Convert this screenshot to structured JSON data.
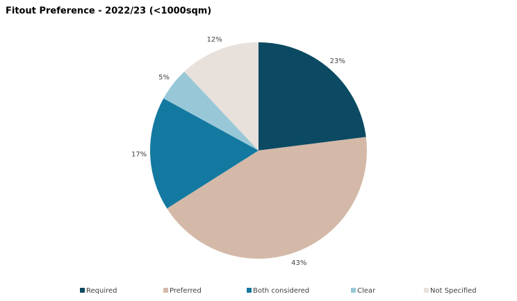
{
  "chart_data": {
    "type": "pie",
    "title": "Fitout Preference - 2022/23 (<1000sqm)",
    "categories": [
      "Required",
      "Preferred",
      "Both considered",
      "Clear",
      "Not Specified"
    ],
    "values": [
      23,
      43,
      17,
      5,
      12
    ],
    "value_labels": [
      "23%",
      "43%",
      "17%",
      "5%",
      "12%"
    ],
    "colors": [
      "#0b4a62",
      "#d4b9a8",
      "#1479a0",
      "#98c8d8",
      "#e8e0da"
    ],
    "legend": "bottom"
  }
}
